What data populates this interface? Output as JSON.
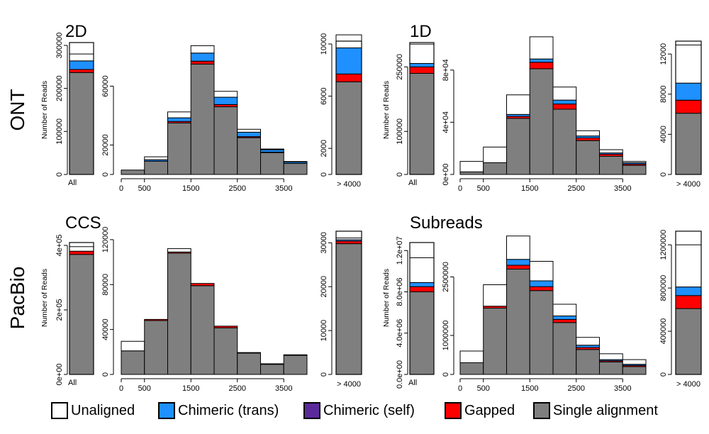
{
  "row_labels": [
    "ONT",
    "PacBio"
  ],
  "ylabel": "Number of Reads",
  "legend": [
    {
      "label": "Unaligned",
      "color": "#ffffff"
    },
    {
      "label": "Chimeric (trans)",
      "color": "#1e90ff"
    },
    {
      "label": "Chimeric (self)",
      "color": "#5b2a9a"
    },
    {
      "label": "Gapped",
      "color": "#ff0000"
    },
    {
      "label": "Single alignment",
      "color": "#7f7f7f"
    }
  ],
  "chart_data": [
    {
      "type": "bar",
      "title": "2D",
      "row": "ONT",
      "all": {
        "category": "All",
        "ylim": [
          0,
          300000
        ],
        "yticks": [
          "0",
          "100000",
          "200000",
          "300000"
        ],
        "ytick_values": [
          0,
          100000,
          200000,
          300000
        ],
        "stack": [
          237000,
          0,
          0,
          7000,
          20000,
          16000
        ]
      },
      "hist": {
        "x_range": [
          0,
          4000
        ],
        "xticks": [
          "0",
          "500",
          "1500",
          "2500",
          "3500"
        ],
        "xtick_values": [
          0,
          500,
          1500,
          2500,
          3500
        ],
        "ylim": [
          0,
          80000
        ],
        "yticks": [
          "0",
          "20000",
          "60000"
        ],
        "ytick_values": [
          0,
          20000,
          60000
        ],
        "bins": [
          [
            3000,
            0,
            0,
            0,
            0,
            0
          ],
          [
            9000,
            200,
            0,
            0,
            1000,
            2000
          ],
          [
            35000,
            1000,
            0,
            1000,
            2500,
            4000
          ],
          [
            75000,
            1500,
            0,
            2000,
            5500,
            5000
          ],
          [
            46000,
            1500,
            0,
            1500,
            5000,
            4000
          ],
          [
            25000,
            1000,
            0,
            700,
            3000,
            2000
          ],
          [
            15000,
            500,
            0,
            200,
            1600,
            500
          ],
          [
            7500,
            200,
            0,
            0,
            1000,
            300
          ]
        ]
      },
      "tail": {
        "category": "> 4000",
        "ylim": [
          0,
          10000
        ],
        "yticks": [
          "0",
          "2000",
          "6000",
          "10000"
        ],
        "ytick_values": [
          0,
          2000,
          6000,
          10000
        ],
        "stack": [
          7100,
          0,
          0,
          600,
          2000,
          1000
        ]
      }
    },
    {
      "type": "bar",
      "title": "1D",
      "row": "ONT",
      "all": {
        "category": "All",
        "ylim": [
          0,
          300000
        ],
        "yticks": [
          "0",
          "100000",
          "250000"
        ],
        "ytick_values": [
          0,
          100000,
          250000
        ],
        "stack": [
          235000,
          0,
          0,
          15000,
          8000,
          45000
        ]
      },
      "hist": {
        "x_range": [
          0,
          4000
        ],
        "xticks": [
          "0",
          "500",
          "1500",
          "2500",
          "3500"
        ],
        "xtick_values": [
          0,
          500,
          1500,
          2500,
          3500
        ],
        "ylim": [
          0,
          100000
        ],
        "yticks": [
          "0e+00",
          "4e+04",
          "8e+04"
        ],
        "ytick_values": [
          0,
          40000,
          80000
        ],
        "bins": [
          [
            2000,
            0,
            0,
            0,
            0,
            8000
          ],
          [
            9000,
            0,
            0,
            0,
            0,
            12000
          ],
          [
            43000,
            0,
            0,
            1500,
            1500,
            15000
          ],
          [
            81000,
            0,
            0,
            5000,
            2500,
            17000
          ],
          [
            50000,
            0,
            0,
            4000,
            3000,
            10000
          ],
          [
            26000,
            0,
            0,
            2000,
            1500,
            4000
          ],
          [
            14000,
            0,
            0,
            1500,
            1000,
            2500
          ],
          [
            7000,
            0,
            0,
            1000,
            1000,
            1000
          ]
        ]
      },
      "tail": {
        "category": "> 4000",
        "ylim": [
          0,
          13000
        ],
        "yticks": [
          "0",
          "4000",
          "8000",
          "12000"
        ],
        "ytick_values": [
          0,
          4000,
          8000,
          12000
        ],
        "stack": [
          6100,
          0,
          0,
          1300,
          1700,
          3800
        ]
      }
    },
    {
      "type": "bar",
      "title": "CCS",
      "row": "PacBio",
      "all": {
        "category": "All",
        "ylim": [
          0,
          400000
        ],
        "yticks": [
          "0e+00",
          "2e+05",
          "4e+05"
        ],
        "ytick_values": [
          0,
          200000,
          400000
        ],
        "stack": [
          372000,
          0,
          0,
          10000,
          0,
          14000
        ]
      },
      "hist": {
        "x_range": [
          0,
          4000
        ],
        "xticks": [
          "0",
          "500",
          "1500",
          "2500",
          "3500"
        ],
        "xtick_values": [
          0,
          500,
          1500,
          2500,
          3500
        ],
        "ylim": [
          0,
          125000
        ],
        "yticks": [
          "0",
          "40000",
          "80000",
          "120000"
        ],
        "ytick_values": [
          0,
          40000,
          80000,
          120000
        ],
        "bins": [
          [
            21000,
            0,
            0,
            0,
            0,
            8500
          ],
          [
            48000,
            0,
            0,
            1000,
            0,
            0
          ],
          [
            108000,
            0,
            0,
            1000,
            0,
            3000
          ],
          [
            79000,
            0,
            0,
            2000,
            0,
            0
          ],
          [
            41500,
            0,
            0,
            1500,
            0,
            0
          ],
          [
            19000,
            0,
            0,
            500,
            0,
            0
          ],
          [
            9000,
            0,
            0,
            500,
            0,
            0
          ],
          [
            17000,
            0,
            0,
            500,
            0,
            0
          ]
        ]
      },
      "tail": {
        "category": "> 4000",
        "ylim": [
          0,
          32000
        ],
        "yticks": [
          "0",
          "10000",
          "20000",
          "30000"
        ],
        "ytick_values": [
          0,
          10000,
          20000,
          30000
        ],
        "stack": [
          29800,
          0,
          0,
          600,
          300,
          400
        ]
      }
    },
    {
      "type": "bar",
      "title": "Subreads",
      "row": "PacBio",
      "all": {
        "category": "All",
        "ylim": [
          0,
          12500000
        ],
        "yticks": [
          "0.0e+00",
          "4.0e+06",
          "8.0e+06",
          "1.2e+07"
        ],
        "ytick_values": [
          0,
          4000000,
          8000000,
          12000000
        ],
        "stack": [
          8000000,
          0,
          0,
          500000,
          400000,
          2400000
        ]
      },
      "hist": {
        "x_range": [
          0,
          4000
        ],
        "xticks": [
          "0",
          "500",
          "1500",
          "2500",
          "3500"
        ],
        "xtick_values": [
          0,
          500,
          1500,
          2500,
          3500
        ],
        "ylim": [
          0,
          3600000
        ],
        "yticks": [
          "0",
          "1000000",
          "2500000"
        ],
        "ytick_values": [
          0,
          1000000,
          2500000
        ],
        "bins": [
          [
            300000,
            0,
            0,
            0,
            0,
            300000
          ],
          [
            1700000,
            0,
            0,
            50000,
            0,
            550000
          ],
          [
            2700000,
            0,
            0,
            100000,
            150000,
            600000
          ],
          [
            2150000,
            0,
            0,
            100000,
            150000,
            500000
          ],
          [
            1330000,
            0,
            0,
            80000,
            90000,
            300000
          ],
          [
            640000,
            0,
            0,
            50000,
            60000,
            200000
          ],
          [
            320000,
            0,
            0,
            30000,
            30000,
            150000
          ],
          [
            200000,
            0,
            0,
            30000,
            30000,
            120000
          ]
        ]
      },
      "tail": {
        "category": "> 4000",
        "ylim": [
          0,
          1300000
        ],
        "yticks": [
          "0",
          "400000",
          "800000",
          "1200000"
        ],
        "ytick_values": [
          0,
          400000,
          800000,
          1200000
        ],
        "stack": [
          610000,
          0,
          0,
          120000,
          80000,
          390000
        ]
      }
    }
  ]
}
